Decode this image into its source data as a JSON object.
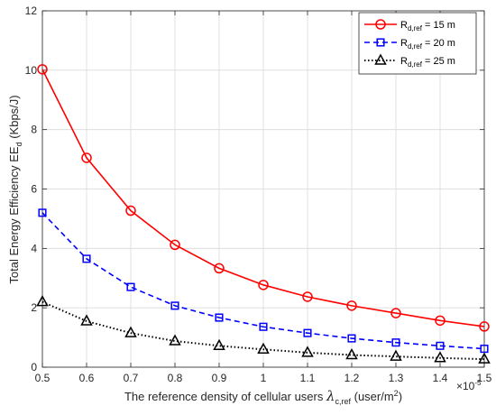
{
  "chart_data": {
    "type": "line",
    "x": [
      0.5,
      0.6,
      0.7,
      0.8,
      0.9,
      1.0,
      1.1,
      1.2,
      1.3,
      1.4,
      1.5
    ],
    "x_exponent_label": "×10",
    "x_exponent_power": "-5",
    "series": [
      {
        "name_main": "R",
        "name_sub": "d,ref",
        "name_rest": " = 15 m",
        "values": [
          10.03,
          7.05,
          5.27,
          4.12,
          3.33,
          2.77,
          2.37,
          2.07,
          1.82,
          1.57,
          1.37
        ],
        "color": "#ff0000",
        "line_style": "solid",
        "marker": "circle"
      },
      {
        "name_main": "R",
        "name_sub": "d,ref",
        "name_rest": " = 20 m",
        "values": [
          5.2,
          3.65,
          2.7,
          2.07,
          1.67,
          1.36,
          1.15,
          0.97,
          0.83,
          0.72,
          0.62
        ],
        "color": "#0000ff",
        "line_style": "dashed",
        "marker": "square"
      },
      {
        "name_main": "R",
        "name_sub": "d,ref",
        "name_rest": " = 25 m",
        "values": [
          2.2,
          1.55,
          1.15,
          0.88,
          0.72,
          0.6,
          0.49,
          0.41,
          0.36,
          0.31,
          0.27
        ],
        "color": "#000000",
        "line_style": "dotted",
        "marker": "triangle"
      }
    ],
    "xlim": [
      0.5,
      1.5
    ],
    "ylim": [
      0,
      12
    ],
    "x_ticks": [
      "0.5",
      "0.6",
      "0.7",
      "0.8",
      "0.9",
      "1",
      "1.1",
      "1.2",
      "1.3",
      "1.4",
      "1.5"
    ],
    "y_ticks": [
      "0",
      "2",
      "4",
      "6",
      "8",
      "10",
      "12"
    ],
    "xlabel": {
      "prefix": "The reference density of cellular users ",
      "symbol": "λ",
      "symbol_sub": "c,ref",
      "unit_open": " (user/m",
      "unit_sup": "2",
      "unit_close": ")"
    },
    "ylabel": {
      "prefix": "Total Energy Efficiency EE",
      "sub": "d",
      "suffix": " (Kbps/J)"
    },
    "grid": true,
    "legend_position": "top-right"
  }
}
